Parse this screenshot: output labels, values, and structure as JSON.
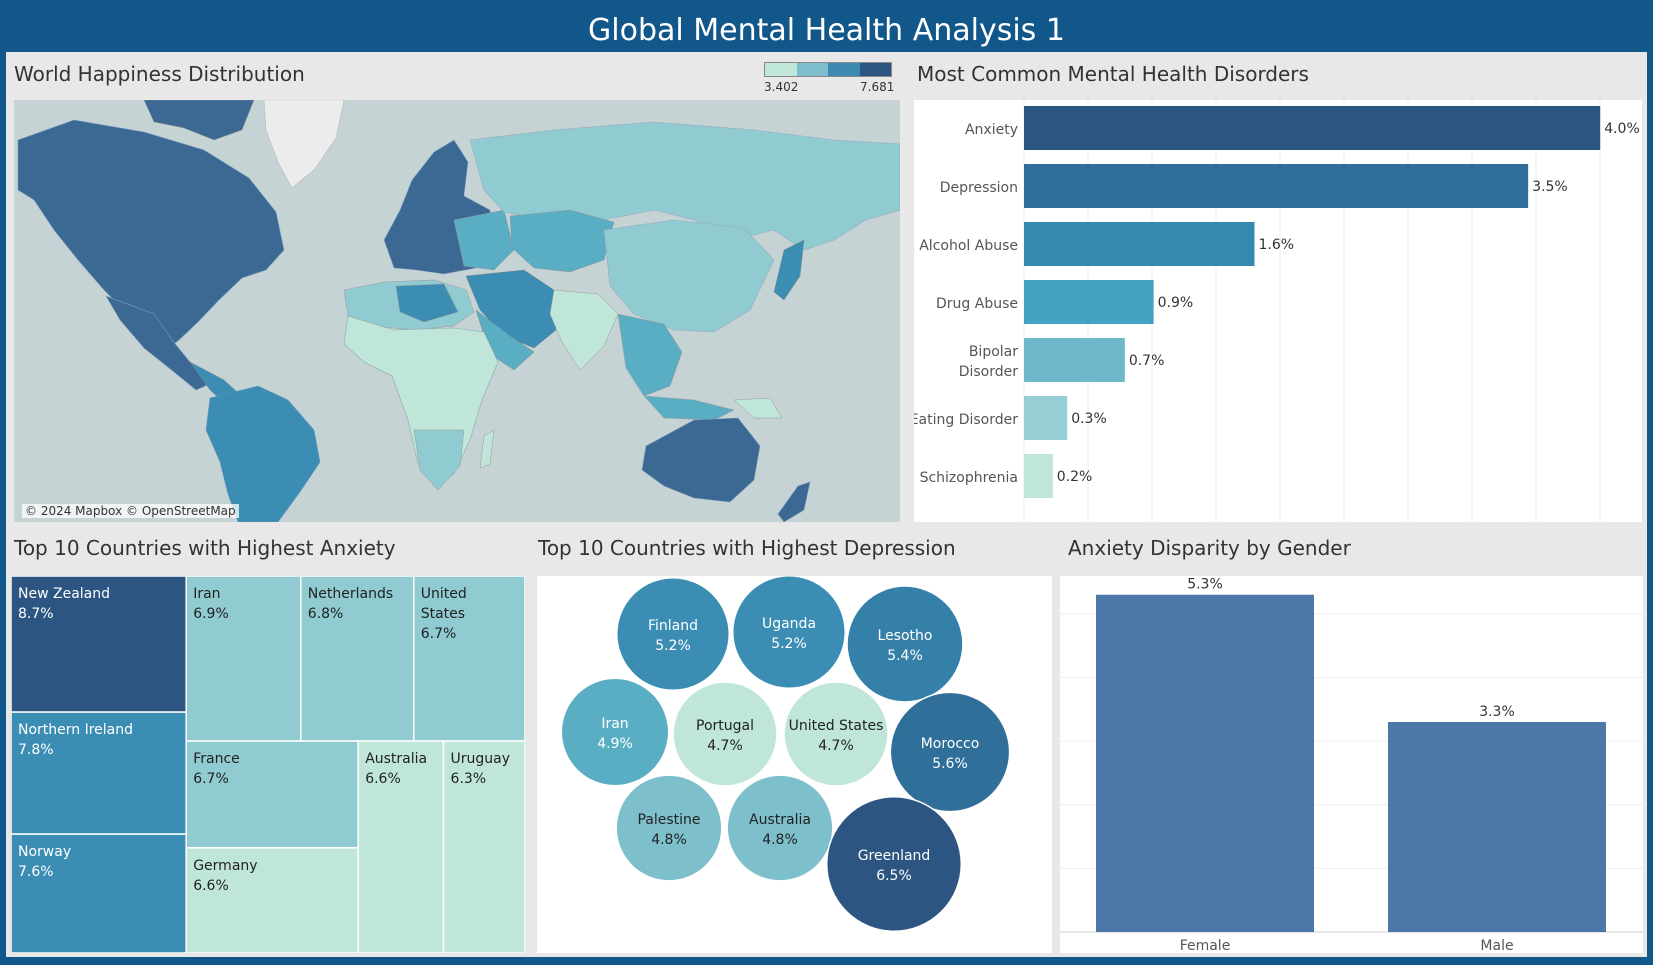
{
  "dashboard": {
    "title": "Global Mental Health Analysis 1"
  },
  "colors": {
    "header_bg": "#12578a",
    "scale": [
      "#c0e6da",
      "#8fcbd0",
      "#5aaec4",
      "#3b8db3",
      "#2f6f99",
      "#2c5582"
    ],
    "gender_bar": "#4c78a8",
    "ocean": "#c5d3d5",
    "land_none": "#ececec"
  },
  "map_panel": {
    "title": "World Happiness Distribution",
    "legend_min": "3.402",
    "legend_max": "7.681",
    "credit": "© 2024 Mapbox © OpenStreetMap"
  },
  "disorders_panel": {
    "title": "Most Common Mental Health Disorders"
  },
  "anxiety_panel": {
    "title": "Top 10 Countries with Highest Anxiety"
  },
  "depression_panel": {
    "title": "Top 10 Countries with Highest Depression"
  },
  "gender_panel": {
    "title": "Anxiety Disparity by Gender"
  },
  "chart_data": [
    {
      "type": "map",
      "title": "World Happiness Distribution",
      "measure_range": [
        3.402,
        7.681
      ],
      "legend": "top-right"
    },
    {
      "type": "bar",
      "orientation": "horizontal",
      "title": "Most Common Mental Health Disorders",
      "categories": [
        "Anxiety",
        "Depression",
        "Alcohol Abuse",
        "Drug Abuse",
        "Bipolar Disorder",
        "Eating Disorder",
        "Schizophrenia"
      ],
      "values": [
        4.0,
        3.5,
        1.6,
        0.9,
        0.7,
        0.3,
        0.2
      ],
      "labels": [
        "4.0%",
        "3.5%",
        "1.6%",
        "0.9%",
        "0.7%",
        "0.3%",
        "0.2%"
      ],
      "xlim": [
        0,
        4.2
      ],
      "grid": true
    },
    {
      "type": "treemap",
      "title": "Top 10 Countries with Highest Anxiety",
      "categories": [
        "New Zealand",
        "Northern Ireland",
        "Norway",
        "Iran",
        "Netherlands",
        "United States",
        "France",
        "Germany",
        "Australia",
        "Uruguay"
      ],
      "values": [
        8.7,
        7.8,
        7.6,
        6.9,
        6.8,
        6.7,
        6.7,
        6.6,
        6.6,
        6.3
      ],
      "labels": [
        "8.7%",
        "7.8%",
        "7.6%",
        "6.9%",
        "6.8%",
        "6.7%",
        "6.7%",
        "6.6%",
        "6.6%",
        "6.3%"
      ]
    },
    {
      "type": "bubble",
      "title": "Top 10 Countries with Highest Depression",
      "categories": [
        "Finland",
        "Uganda",
        "Lesotho",
        "Iran",
        "Portugal",
        "United States",
        "Morocco",
        "Palestine",
        "Australia",
        "Greenland"
      ],
      "values": [
        5.2,
        5.2,
        5.4,
        4.9,
        4.7,
        4.7,
        5.6,
        4.8,
        4.8,
        6.5
      ],
      "labels": [
        "5.2%",
        "5.2%",
        "5.4%",
        "4.9%",
        "4.7%",
        "4.7%",
        "5.6%",
        "4.8%",
        "4.8%",
        "6.5%"
      ]
    },
    {
      "type": "bar",
      "title": "Anxiety Disparity by Gender",
      "categories": [
        "Female",
        "Male"
      ],
      "values": [
        5.3,
        3.3
      ],
      "labels": [
        "5.3%",
        "3.3%"
      ],
      "ylim": [
        0,
        5.5
      ],
      "grid": true
    }
  ]
}
